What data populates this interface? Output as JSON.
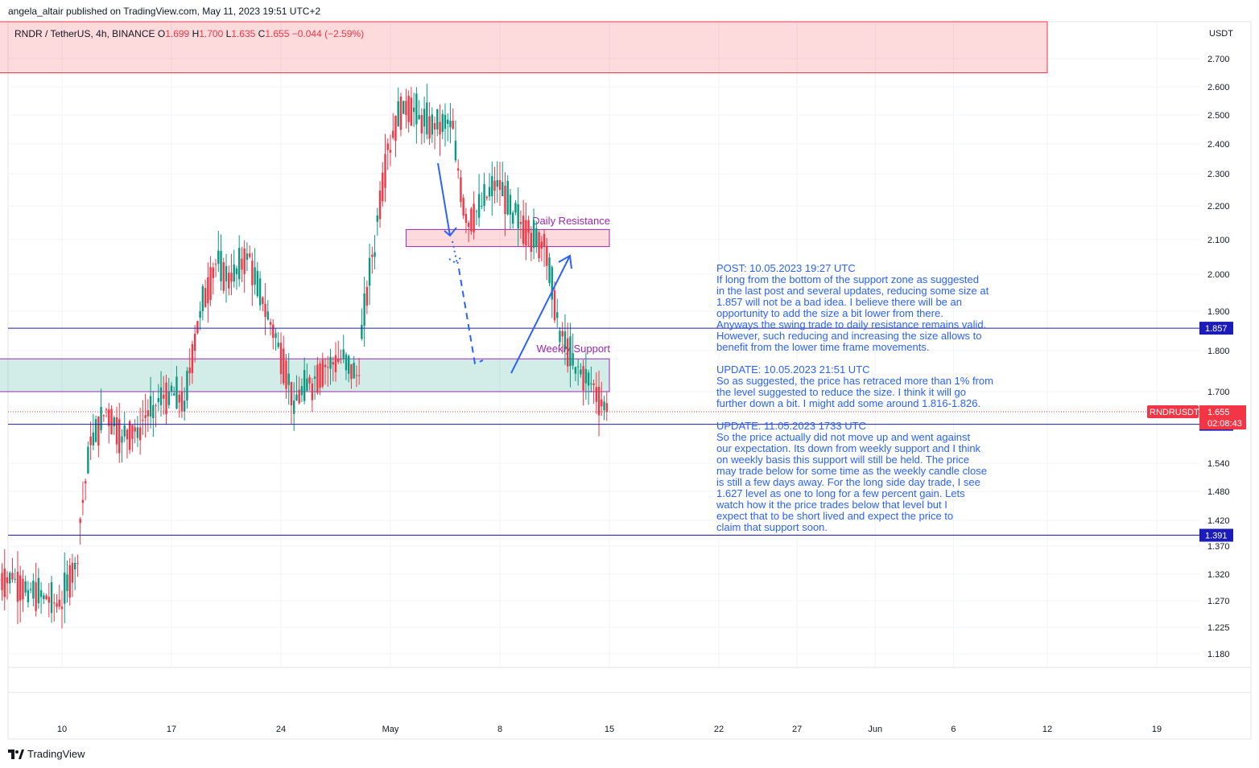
{
  "header": {
    "publisher": "angela_altair published on TradingView.com, May 11, 2023 19:51 UTC+2"
  },
  "legend": {
    "symbol": "RNDR / TetherUS, 4h, BINANCE",
    "o_label": "O",
    "o_value": "1.699",
    "h_label": "H",
    "h_value": "1.700",
    "l_label": "L",
    "l_value": "1.635",
    "c_label": "C",
    "c_value": "1.655",
    "change": "−0.044 (−2.59%)"
  },
  "footer": {
    "brand": "TradingView"
  },
  "colors": {
    "up": "#089981",
    "down": "#f23645",
    "line": "#1c1cb8",
    "note": "#2962ff",
    "zone_label": "#9c27b0"
  },
  "chart_data": {
    "type": "candlestick",
    "symbol": "RNDRUSDT",
    "currency": "USDT",
    "y_ticks": [
      "2.700",
      "2.600",
      "2.500",
      "2.400",
      "2.300",
      "2.200",
      "2.100",
      "2.000",
      "1.900",
      "1.800",
      "1.700",
      "1.540",
      "1.480",
      "1.420",
      "1.370",
      "1.320",
      "1.270",
      "1.225",
      "1.180"
    ],
    "y_tick_values": [
      2.7,
      2.6,
      2.5,
      2.4,
      2.3,
      2.2,
      2.1,
      2.0,
      1.9,
      1.8,
      1.7,
      1.54,
      1.48,
      1.42,
      1.37,
      1.32,
      1.27,
      1.225,
      1.18
    ],
    "x_ticks": [
      "10",
      "17",
      "24",
      "May",
      "8",
      "15",
      "22",
      "27",
      "Jun",
      "6",
      "12",
      "19"
    ],
    "x_tick_dates": [
      "2023-04-10",
      "2023-04-17",
      "2023-04-24",
      "2023-05-01",
      "2023-05-08",
      "2023-05-15",
      "2023-05-22",
      "2023-05-27",
      "2023-06-01",
      "2023-06-06",
      "2023-06-12",
      "2023-06-19"
    ],
    "price_lines": [
      {
        "value": 1.857,
        "label": "1.857"
      },
      {
        "value": 1.627,
        "label": "1.627"
      },
      {
        "value": 1.391,
        "label": "1.391"
      }
    ],
    "current_price": {
      "value": 1.655,
      "label": "1.655",
      "countdown": "02:08:43",
      "tag": "RNDRUSDT"
    },
    "zones": [
      {
        "name": "Daily Resistance",
        "from": 2.08,
        "to": 2.13,
        "start": "2023-05-02",
        "end": "2023-05-15"
      },
      {
        "name": "Weekly Support",
        "from": 1.7,
        "to": 1.78,
        "start": "2023-04-06",
        "end": "2023-05-15"
      },
      {
        "name": "",
        "from": 2.65,
        "to": 2.84,
        "start": "2023-04-06",
        "end": "2023-06-12"
      }
    ],
    "candles_daily_close": [
      [
        "2023-04-06",
        1.31
      ],
      [
        "2023-04-07",
        1.29
      ],
      [
        "2023-04-08",
        1.28
      ],
      [
        "2023-04-09",
        1.26
      ],
      [
        "2023-04-10",
        1.34
      ],
      [
        "2023-04-11",
        1.58
      ],
      [
        "2023-04-12",
        1.66
      ],
      [
        "2023-04-13",
        1.6
      ],
      [
        "2023-04-14",
        1.62
      ],
      [
        "2023-04-15",
        1.67
      ],
      [
        "2023-04-16",
        1.7
      ],
      [
        "2023-04-17",
        1.68
      ],
      [
        "2023-04-18",
        1.9
      ],
      [
        "2023-04-19",
        2.03
      ],
      [
        "2023-04-20",
        1.98
      ],
      [
        "2023-04-21",
        2.06
      ],
      [
        "2023-04-22",
        1.92
      ],
      [
        "2023-04-23",
        1.82
      ],
      [
        "2023-04-24",
        1.68
      ],
      [
        "2023-04-25",
        1.72
      ],
      [
        "2023-04-26",
        1.76
      ],
      [
        "2023-04-27",
        1.78
      ],
      [
        "2023-04-28",
        1.74
      ],
      [
        "2023-04-29",
        2.05
      ],
      [
        "2023-04-30",
        2.38
      ],
      [
        "2023-05-01",
        2.55
      ],
      [
        "2023-05-02",
        2.5
      ],
      [
        "2023-05-03",
        2.45
      ],
      [
        "2023-05-04",
        2.48
      ],
      [
        "2023-05-05",
        2.15
      ],
      [
        "2023-05-06",
        2.2
      ],
      [
        "2023-05-07",
        2.28
      ],
      [
        "2023-05-08",
        2.18
      ],
      [
        "2023-05-09",
        2.12
      ],
      [
        "2023-05-10",
        2.08
      ],
      [
        "2023-05-11",
        1.85
      ],
      [
        "2023-05-12",
        1.76
      ],
      [
        "2023-05-13",
        1.72
      ],
      [
        "2023-05-14",
        1.655
      ]
    ]
  },
  "annotations": {
    "daily_resistance": "Daily Resistance",
    "weekly_support": "Weekly Support",
    "post": "POST: 10.05.2023 19:27 UTC\nIf long from the bottom of the support zone as suggested\nin the last post and several updates, reducing some size at\n1.857 will not be a bad idea. I believe there will be an\nopportunity to add the size a bit lower from there.\nAnyways the swing trade to daily resistance remains valid.\nHowever, such reducing and increasing the size allows to\nbenefit from the lower time frame movements.",
    "update1": "UPDATE: 10.05.2023 21:51 UTC\nSo as suggested, the price has retraced more than 1% from\nthe level suggested to reduce the size. I think it will go\nfurther down a bit. I might add some around 1.816-1.826.",
    "update2": "UPDATE: 11.05.2023 1733 UTC\nSo the price actually did not move up and went against\nour expectation. Its down from weekly support and I think\non weekly basis this support will still be held. The price\nmay trade below for some time as the weekly candle close\nis still a few days away. For the long side day trade, I see\n1.627 level as one to long for a few percent gain. Lets\nwatch how it the price trades below that level but I\nexpect that to be short lived and expect the price to\nclaim that support soon."
  }
}
